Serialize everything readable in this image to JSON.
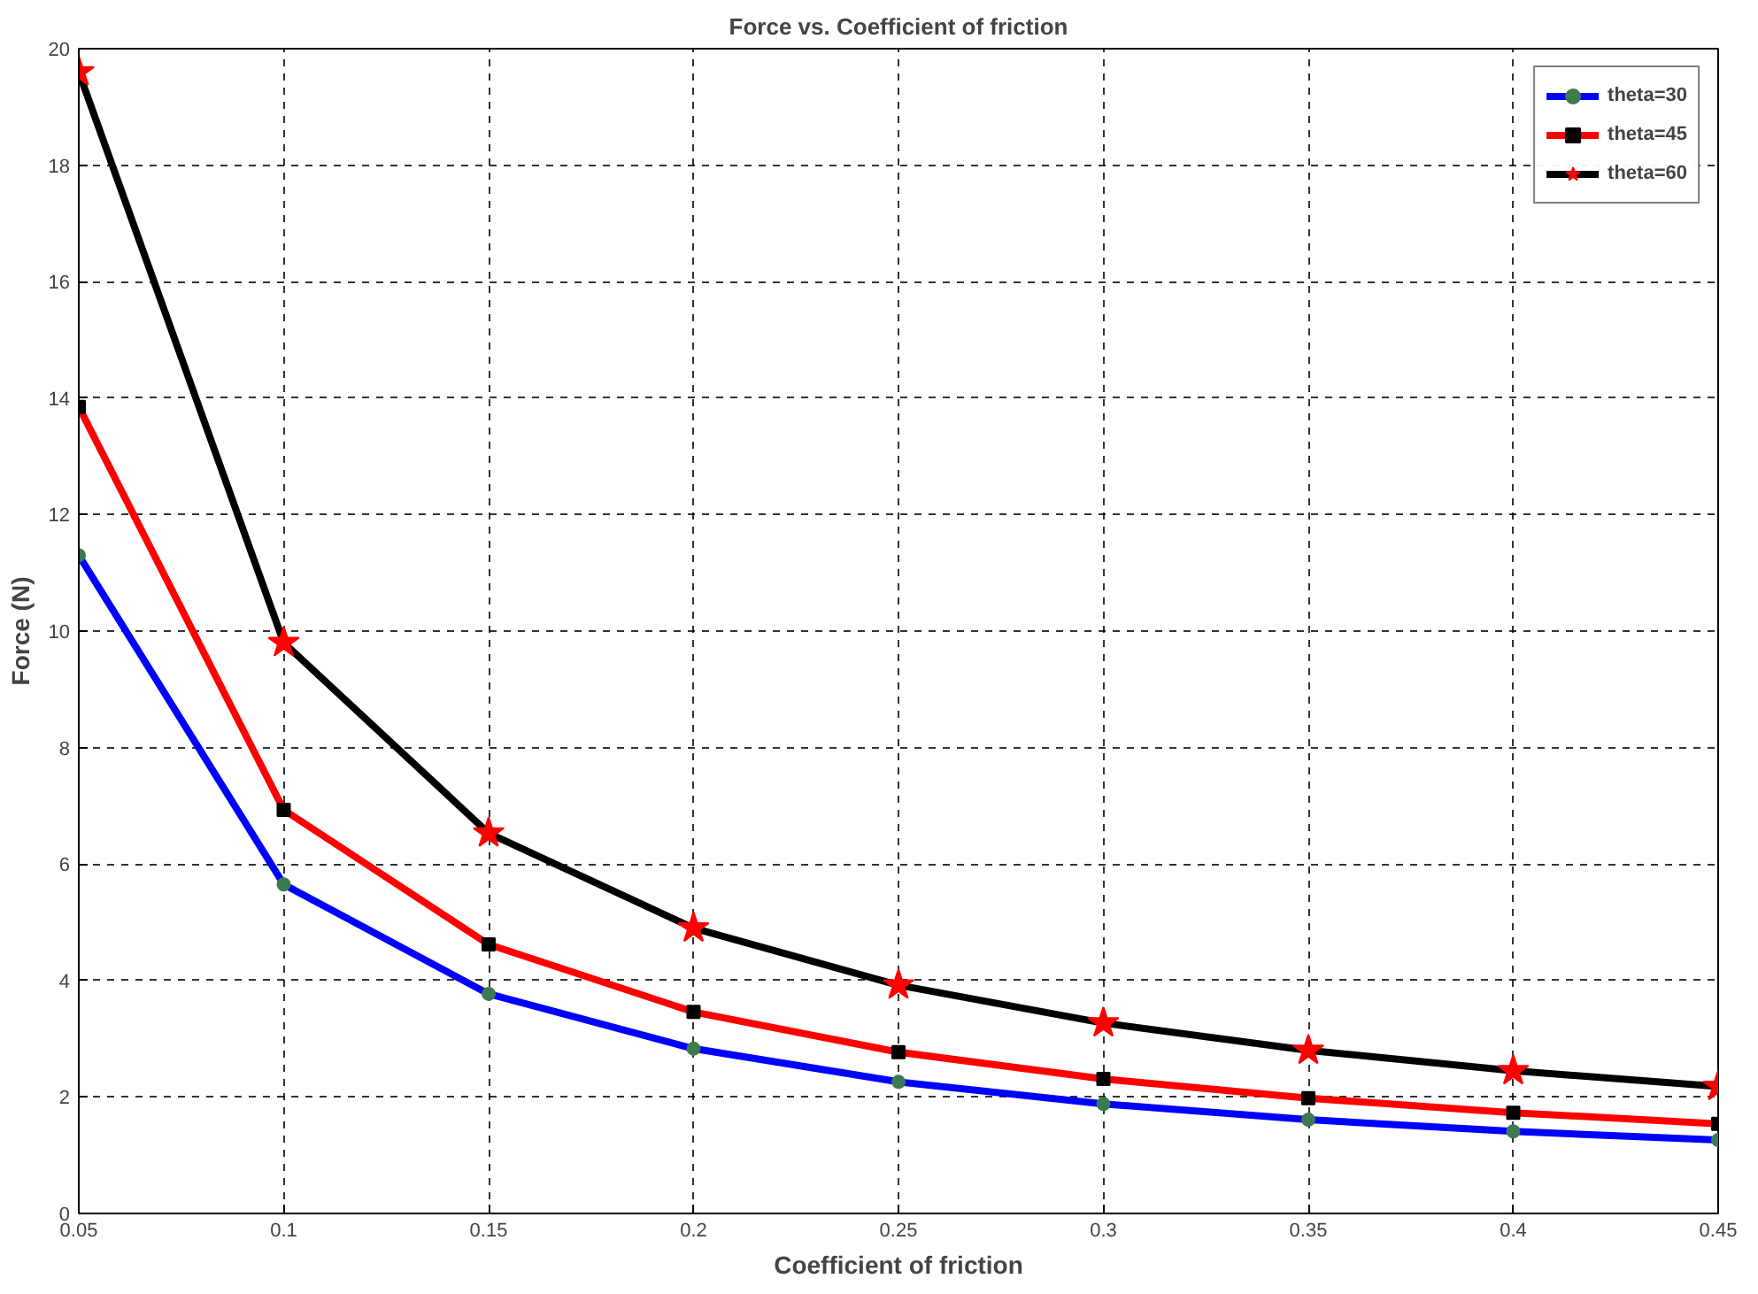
{
  "chart_data": {
    "type": "line",
    "title": "Force vs. Coefficient of friction",
    "xlabel": "Coefficient of friction",
    "ylabel": "Force (N)",
    "x": [
      0.05,
      0.1,
      0.15,
      0.2,
      0.25,
      0.3,
      0.35,
      0.4,
      0.45
    ],
    "series": [
      {
        "name": "theta=30",
        "color": "#0000ff",
        "marker": "circle",
        "values": [
          11.3,
          5.65,
          3.77,
          2.83,
          2.26,
          1.88,
          1.61,
          1.41,
          1.26
        ]
      },
      {
        "name": "theta=45",
        "color": "#ff0000",
        "marker": "square",
        "values": [
          13.85,
          6.93,
          4.62,
          3.46,
          2.77,
          2.31,
          1.98,
          1.73,
          1.54
        ]
      },
      {
        "name": "theta=60",
        "color": "#000000",
        "marker": "star",
        "values": [
          19.6,
          9.8,
          6.53,
          4.9,
          3.92,
          3.27,
          2.8,
          2.45,
          2.18
        ]
      }
    ],
    "xlim": [
      0.05,
      0.45
    ],
    "ylim": [
      0,
      20
    ],
    "xticks": [
      0.05,
      0.1,
      0.15,
      0.2,
      0.25,
      0.3,
      0.35,
      0.4,
      0.45
    ],
    "yticks": [
      0,
      2,
      4,
      6,
      8,
      10,
      12,
      14,
      16,
      18,
      20
    ],
    "grid": true,
    "legend": "top right",
    "line_style": "solid"
  }
}
